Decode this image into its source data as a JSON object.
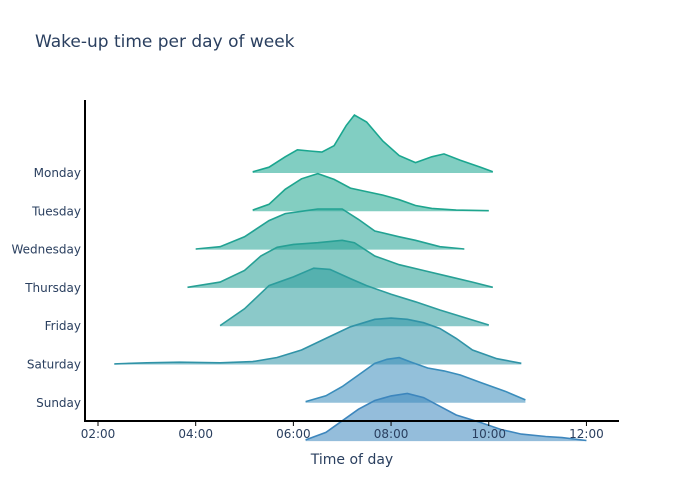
{
  "chart_data": {
    "type": "ridgeline",
    "title": "Wake-up time per day of week",
    "xlabel": "Time of day",
    "ylabel": "",
    "x_ticks": [
      "02:00",
      "04:00",
      "06:00",
      "08:00",
      "10:00",
      "12:00"
    ],
    "xlim": [
      "02:00",
      "12:40"
    ],
    "grid": false,
    "legend": "none",
    "series": [
      {
        "name": "Monday",
        "color": "#1aa68f",
        "points": [
          [
            "05:10",
            0.02
          ],
          [
            "05:30",
            0.1
          ],
          [
            "05:50",
            0.28
          ],
          [
            "06:05",
            0.4
          ],
          [
            "06:20",
            0.38
          ],
          [
            "06:35",
            0.36
          ],
          [
            "06:50",
            0.47
          ],
          [
            "07:05",
            0.82
          ],
          [
            "07:15",
            1.0
          ],
          [
            "07:30",
            0.88
          ],
          [
            "07:50",
            0.55
          ],
          [
            "08:10",
            0.3
          ],
          [
            "08:30",
            0.18
          ],
          [
            "08:50",
            0.28
          ],
          [
            "09:05",
            0.33
          ],
          [
            "09:25",
            0.22
          ],
          [
            "09:50",
            0.1
          ],
          [
            "10:05",
            0.02
          ]
        ]
      },
      {
        "name": "Tuesday",
        "color": "#1ea58e",
        "points": [
          [
            "05:10",
            0.02
          ],
          [
            "05:30",
            0.12
          ],
          [
            "05:50",
            0.38
          ],
          [
            "06:10",
            0.56
          ],
          [
            "06:30",
            0.65
          ],
          [
            "06:50",
            0.55
          ],
          [
            "07:10",
            0.4
          ],
          [
            "07:30",
            0.34
          ],
          [
            "07:50",
            0.28
          ],
          [
            "08:10",
            0.2
          ],
          [
            "08:30",
            0.1
          ],
          [
            "08:50",
            0.05
          ],
          [
            "09:20",
            0.02
          ],
          [
            "10:00",
            0.01
          ]
        ]
      },
      {
        "name": "Wednesday",
        "color": "#22a293",
        "points": [
          [
            "04:00",
            0.01
          ],
          [
            "04:30",
            0.05
          ],
          [
            "05:00",
            0.22
          ],
          [
            "05:30",
            0.5
          ],
          [
            "05:50",
            0.62
          ],
          [
            "06:10",
            0.66
          ],
          [
            "06:30",
            0.7
          ],
          [
            "07:00",
            0.7
          ],
          [
            "07:20",
            0.52
          ],
          [
            "07:40",
            0.32
          ],
          [
            "08:10",
            0.22
          ],
          [
            "08:30",
            0.16
          ],
          [
            "09:00",
            0.05
          ],
          [
            "09:30",
            0.01
          ]
        ]
      },
      {
        "name": "Thursday",
        "color": "#27a095",
        "points": [
          [
            "03:50",
            0.01
          ],
          [
            "04:30",
            0.1
          ],
          [
            "05:00",
            0.3
          ],
          [
            "05:20",
            0.55
          ],
          [
            "05:40",
            0.7
          ],
          [
            "06:00",
            0.75
          ],
          [
            "06:30",
            0.78
          ],
          [
            "07:00",
            0.82
          ],
          [
            "07:15",
            0.78
          ],
          [
            "07:40",
            0.55
          ],
          [
            "08:10",
            0.4
          ],
          [
            "08:40",
            0.3
          ],
          [
            "09:10",
            0.2
          ],
          [
            "09:40",
            0.1
          ],
          [
            "10:05",
            0.01
          ]
        ]
      },
      {
        "name": "Friday",
        "color": "#2c9d9d",
        "points": [
          [
            "04:30",
            0.01
          ],
          [
            "05:00",
            0.3
          ],
          [
            "05:30",
            0.7
          ],
          [
            "06:00",
            0.85
          ],
          [
            "06:25",
            1.0
          ],
          [
            "06:45",
            0.98
          ],
          [
            "07:10",
            0.82
          ],
          [
            "07:30",
            0.7
          ],
          [
            "08:00",
            0.55
          ],
          [
            "08:30",
            0.42
          ],
          [
            "09:00",
            0.28
          ],
          [
            "09:30",
            0.15
          ],
          [
            "10:00",
            0.02
          ]
        ]
      },
      {
        "name": "Saturday",
        "color": "#3093a7",
        "points": [
          [
            "02:20",
            0.01
          ],
          [
            "03:00",
            0.03
          ],
          [
            "03:40",
            0.04
          ],
          [
            "04:30",
            0.03
          ],
          [
            "05:10",
            0.05
          ],
          [
            "05:40",
            0.12
          ],
          [
            "06:10",
            0.25
          ],
          [
            "06:40",
            0.45
          ],
          [
            "07:10",
            0.65
          ],
          [
            "07:40",
            0.78
          ],
          [
            "08:00",
            0.8
          ],
          [
            "08:20",
            0.78
          ],
          [
            "08:40",
            0.72
          ],
          [
            "09:00",
            0.62
          ],
          [
            "09:20",
            0.45
          ],
          [
            "09:40",
            0.25
          ],
          [
            "10:10",
            0.1
          ],
          [
            "10:40",
            0.02
          ]
        ]
      },
      {
        "name": "Sunday",
        "color": "#3a8dbb",
        "points": [
          [
            "06:15",
            0.02
          ],
          [
            "06:40",
            0.12
          ],
          [
            "07:00",
            0.28
          ],
          [
            "07:20",
            0.48
          ],
          [
            "07:40",
            0.68
          ],
          [
            "07:55",
            0.75
          ],
          [
            "08:10",
            0.78
          ],
          [
            "08:25",
            0.7
          ],
          [
            "08:45",
            0.6
          ],
          [
            "09:05",
            0.55
          ],
          [
            "09:25",
            0.48
          ],
          [
            "09:50",
            0.35
          ],
          [
            "10:20",
            0.2
          ],
          [
            "10:45",
            0.05
          ]
        ]
      },
      {
        "name": "",
        "color": "#3d86bd",
        "points": [
          [
            "06:15",
            0.02
          ],
          [
            "06:40",
            0.15
          ],
          [
            "07:00",
            0.35
          ],
          [
            "07:20",
            0.55
          ],
          [
            "07:40",
            0.7
          ],
          [
            "08:00",
            0.78
          ],
          [
            "08:20",
            0.82
          ],
          [
            "08:40",
            0.75
          ],
          [
            "09:00",
            0.6
          ],
          [
            "09:20",
            0.45
          ],
          [
            "09:50",
            0.32
          ],
          [
            "10:15",
            0.2
          ],
          [
            "10:40",
            0.12
          ],
          [
            "11:10",
            0.08
          ],
          [
            "11:30",
            0.06
          ],
          [
            "12:00",
            0.01
          ]
        ]
      }
    ]
  }
}
